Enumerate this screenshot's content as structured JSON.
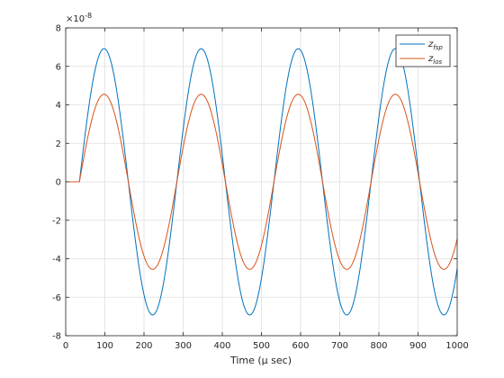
{
  "chart_data": {
    "type": "line",
    "title": "",
    "xlabel": "Time (μ sec)",
    "ylabel": "",
    "xlim": [
      0,
      1000
    ],
    "ylim": [
      -8,
      8
    ],
    "y_exponent_label": "×10",
    "y_exponent_value": "-8",
    "x_ticks": [
      0,
      100,
      200,
      300,
      400,
      500,
      600,
      700,
      800,
      900,
      1000
    ],
    "y_ticks": [
      -8,
      -6,
      -4,
      -2,
      0,
      2,
      4,
      6,
      8
    ],
    "x_tick_labels": [
      "0",
      "100",
      "200",
      "300",
      "400",
      "500",
      "600",
      "700",
      "800",
      "900",
      "1000"
    ],
    "y_tick_labels": [
      "-8",
      "-6",
      "-4",
      "-2",
      "0",
      "2",
      "4",
      "6",
      "8"
    ],
    "grid": true,
    "legend_placement": "top-right",
    "series": [
      {
        "name": "z_fsp",
        "label_main": "z",
        "label_sub": "fsp",
        "color": "#0072BD",
        "waveform": "sine",
        "onset_x": 35,
        "x_at_first_peak": 98,
        "x_at_second_peak": 346,
        "amplitude": 6.92,
        "period": 248,
        "points": [
          [
            0,
            0
          ],
          [
            35,
            0
          ],
          [
            98,
            6.92
          ],
          [
            222,
            -6.92
          ],
          [
            346,
            6.92
          ],
          [
            470,
            -6.92
          ],
          [
            594,
            6.92
          ],
          [
            718,
            -6.92
          ],
          [
            842,
            6.92
          ],
          [
            966,
            -6.92
          ],
          [
            1000,
            -5.3
          ]
        ]
      },
      {
        "name": "z_los",
        "label_main": "z",
        "label_sub": "los",
        "color": "#D95319",
        "waveform": "sine",
        "onset_x": 35,
        "x_at_first_peak": 98,
        "x_at_second_peak": 346,
        "amplitude": 4.55,
        "period": 248,
        "points": [
          [
            0,
            0
          ],
          [
            35,
            0
          ],
          [
            98,
            4.55
          ],
          [
            222,
            -4.55
          ],
          [
            346,
            4.55
          ],
          [
            470,
            -4.55
          ],
          [
            594,
            4.55
          ],
          [
            718,
            -4.55
          ],
          [
            842,
            4.55
          ],
          [
            966,
            -4.55
          ],
          [
            1000,
            -3.5
          ]
        ]
      }
    ]
  }
}
